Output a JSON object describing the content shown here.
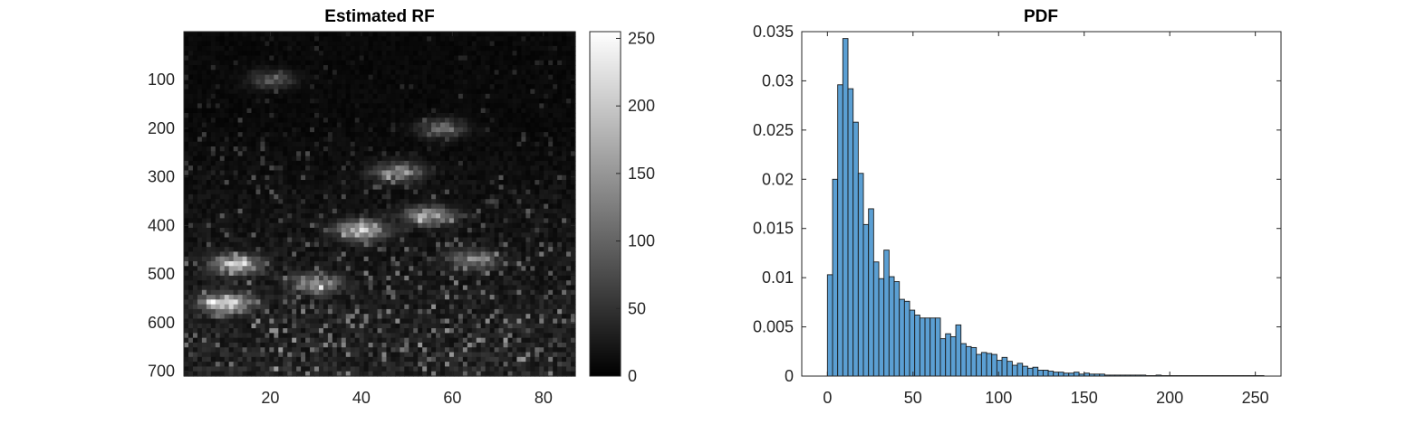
{
  "chart_data": [
    {
      "type": "heatmap",
      "title": "Estimated RF",
      "xlabel": "",
      "ylabel": "",
      "colormap": "gray",
      "x_ticks": [
        20,
        40,
        60,
        80
      ],
      "y_ticks": [
        100,
        200,
        300,
        400,
        500,
        600,
        700
      ],
      "xlim": [
        1,
        87
      ],
      "ylim": [
        1,
        710
      ],
      "y_reversed": true,
      "colorbar": {
        "ticks": [
          0,
          50,
          100,
          150,
          200,
          250
        ],
        "range": [
          0,
          255
        ]
      },
      "bright_regions": [
        {
          "x": 10,
          "y": 560,
          "value": 240
        },
        {
          "x": 12,
          "y": 480,
          "value": 200
        },
        {
          "x": 40,
          "y": 410,
          "value": 220
        },
        {
          "x": 55,
          "y": 380,
          "value": 190
        },
        {
          "x": 48,
          "y": 290,
          "value": 160
        },
        {
          "x": 30,
          "y": 520,
          "value": 150
        },
        {
          "x": 65,
          "y": 470,
          "value": 130
        },
        {
          "x": 58,
          "y": 200,
          "value": 110
        },
        {
          "x": 20,
          "y": 100,
          "value": 90
        }
      ]
    },
    {
      "type": "bar",
      "title": "PDF",
      "xlabel": "",
      "ylabel": "",
      "xlim": [
        -15,
        265
      ],
      "ylim": [
        0,
        0.035
      ],
      "x_ticks": [
        0,
        50,
        100,
        150,
        200,
        250
      ],
      "y_ticks": [
        "0",
        "0.005",
        "0.01",
        "0.015",
        "0.02",
        "0.025",
        "0.03",
        "0.035"
      ],
      "bin_width": 3,
      "bin_start": 0,
      "bar_color": "#5b9fd3",
      "values": [
        0.0103,
        0.02,
        0.0296,
        0.0343,
        0.0292,
        0.0258,
        0.0206,
        0.0154,
        0.017,
        0.0116,
        0.0099,
        0.0128,
        0.0101,
        0.0096,
        0.0078,
        0.0076,
        0.0067,
        0.0062,
        0.0059,
        0.0059,
        0.0059,
        0.0059,
        0.0038,
        0.0043,
        0.004,
        0.0052,
        0.0033,
        0.003,
        0.0029,
        0.0022,
        0.0024,
        0.0023,
        0.0022,
        0.0016,
        0.0019,
        0.0015,
        0.0011,
        0.0013,
        0.001,
        0.0008,
        0.0009,
        0.0006,
        0.0006,
        0.0005,
        0.0004,
        0.0004,
        0.0003,
        0.0003,
        0.0004,
        0.0002,
        0.0003,
        0.0002,
        0.0002,
        0.0002,
        0.0001,
        0.0001,
        0.0001,
        0.0001,
        0.0001,
        0.0001,
        0.0001,
        0.0001,
        5e-05,
        5e-05,
        0.0001,
        5e-05,
        5e-05,
        5e-05,
        5e-05,
        5e-05,
        5e-05,
        5e-05,
        5e-05,
        5e-05,
        5e-05,
        5e-05,
        5e-05,
        5e-05,
        5e-05,
        5e-05,
        5e-05,
        5e-05,
        5e-05,
        5e-05,
        5e-05
      ]
    }
  ]
}
